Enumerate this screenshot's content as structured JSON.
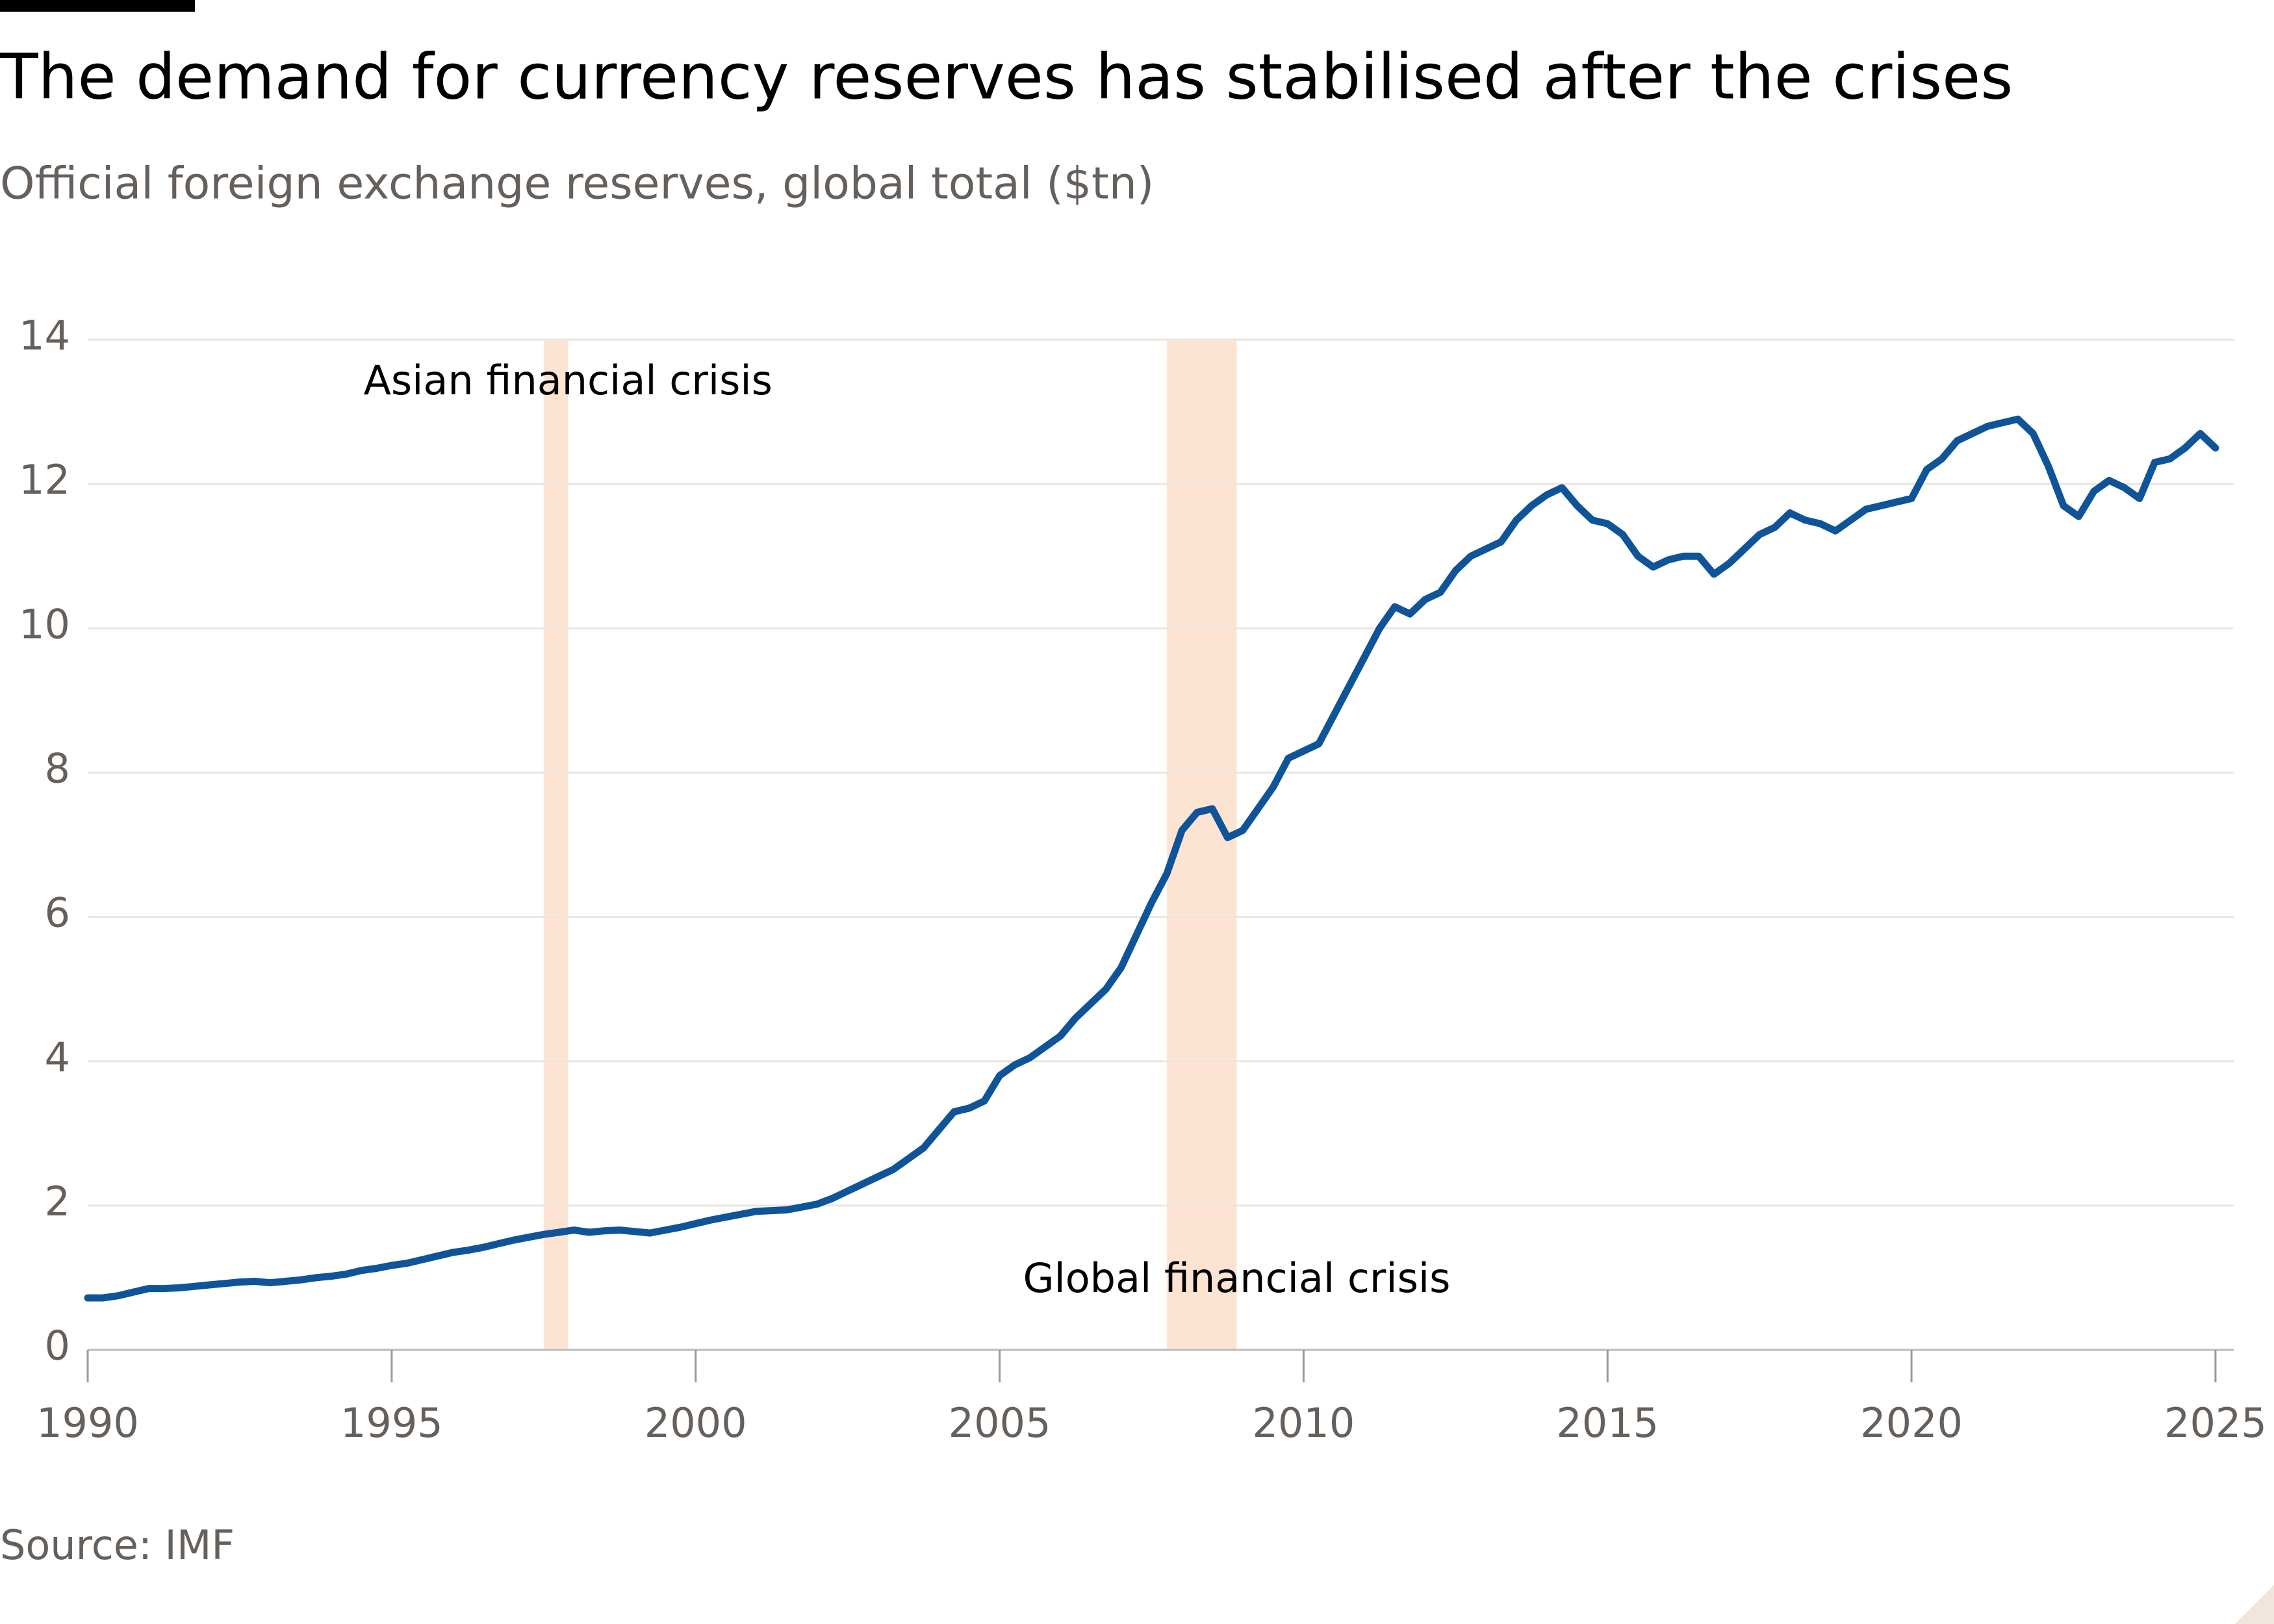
{
  "chart_data": {
    "type": "line",
    "title": "The demand for currency reserves has stabilised after the crises",
    "subtitle": "Official foreign exchange reserves, global total ($tn)",
    "source": "Source: IMF",
    "x": [
      1990,
      1990.25,
      1990.5,
      1990.75,
      1991,
      1991.25,
      1991.5,
      1991.75,
      1992,
      1992.25,
      1992.5,
      1992.75,
      1993,
      1993.25,
      1993.5,
      1993.75,
      1994,
      1994.25,
      1994.5,
      1994.75,
      1995,
      1995.25,
      1995.5,
      1995.75,
      1996,
      1996.25,
      1996.5,
      1996.75,
      1997,
      1997.25,
      1997.5,
      1997.75,
      1998,
      1998.25,
      1998.5,
      1998.75,
      1999,
      1999.25,
      1999.5,
      1999.75,
      2000,
      2000.25,
      2000.5,
      2000.75,
      2001,
      2001.25,
      2001.5,
      2001.75,
      2002,
      2002.25,
      2002.5,
      2002.75,
      2003,
      2003.25,
      2003.5,
      2003.75,
      2004,
      2004.25,
      2004.5,
      2004.75,
      2005,
      2005.25,
      2005.5,
      2005.75,
      2006,
      2006.25,
      2006.5,
      2006.75,
      2007,
      2007.25,
      2007.5,
      2007.75,
      2008,
      2008.25,
      2008.5,
      2008.75,
      2009,
      2009.25,
      2009.5,
      2009.75,
      2010,
      2010.25,
      2010.5,
      2010.75,
      2011,
      2011.25,
      2011.5,
      2011.75,
      2012,
      2012.25,
      2012.5,
      2012.75,
      2013,
      2013.25,
      2013.5,
      2013.75,
      2014,
      2014.25,
      2014.5,
      2014.75,
      2015,
      2015.25,
      2015.5,
      2015.75,
      2016,
      2016.25,
      2016.5,
      2016.75,
      2017,
      2017.25,
      2017.5,
      2017.75,
      2018,
      2018.25,
      2018.5,
      2018.75,
      2019,
      2019.25,
      2019.5,
      2019.75,
      2020,
      2020.25,
      2020.5,
      2020.75,
      2021,
      2021.25,
      2021.5,
      2021.75,
      2022,
      2022.25,
      2022.5,
      2022.75,
      2023,
      2023.25,
      2023.5,
      2023.75,
      2024,
      2024.25,
      2024.5,
      2024.75,
      2025
    ],
    "series": [
      {
        "color": "#0f5499",
        "values": [
          0.72,
          0.72,
          0.75,
          0.8,
          0.85,
          0.85,
          0.86,
          0.88,
          0.9,
          0.92,
          0.94,
          0.95,
          0.93,
          0.95,
          0.97,
          1.0,
          1.02,
          1.05,
          1.1,
          1.13,
          1.17,
          1.2,
          1.25,
          1.3,
          1.35,
          1.38,
          1.42,
          1.47,
          1.52,
          1.56,
          1.6,
          1.63,
          1.66,
          1.63,
          1.65,
          1.66,
          1.64,
          1.62,
          1.66,
          1.7,
          1.75,
          1.8,
          1.84,
          1.88,
          1.92,
          1.93,
          1.94,
          1.98,
          2.02,
          2.1,
          2.2,
          2.3,
          2.4,
          2.5,
          2.65,
          2.8,
          3.05,
          3.3,
          3.35,
          3.45,
          3.8,
          3.95,
          4.05,
          4.2,
          4.35,
          4.6,
          4.8,
          5.0,
          5.3,
          5.75,
          6.2,
          6.6,
          7.2,
          7.45,
          7.5,
          7.1,
          7.2,
          7.5,
          7.8,
          8.2,
          8.3,
          8.4,
          8.8,
          9.2,
          9.6,
          10.0,
          10.3,
          10.2,
          10.4,
          10.5,
          10.8,
          11.0,
          11.1,
          11.2,
          11.5,
          11.7,
          11.85,
          11.95,
          11.7,
          11.5,
          11.45,
          11.3,
          11.0,
          10.85,
          10.95,
          11.0,
          11.0,
          10.75,
          10.9,
          11.1,
          11.3,
          11.4,
          11.6,
          11.5,
          11.45,
          11.35,
          11.5,
          11.65,
          11.7,
          11.75,
          11.8,
          12.2,
          12.35,
          12.6,
          12.7,
          12.8,
          12.85,
          12.9,
          12.7,
          12.25,
          11.7,
          11.55,
          11.9,
          12.05,
          11.95,
          11.8,
          12.3,
          12.35,
          12.5,
          12.7,
          12.5
        ]
      }
    ],
    "bands": [
      {
        "label": "Asian financial crisis",
        "start": 1997.5,
        "end": 1997.9,
        "color": "#fde4d2"
      },
      {
        "label": "Global financial crisis",
        "start": 2007.75,
        "end": 2008.9,
        "color": "#fde4d2"
      }
    ],
    "xlim": [
      1990,
      2025.3
    ],
    "xticks": [
      1990,
      1995,
      2000,
      2005,
      2010,
      2015,
      2020,
      2025
    ],
    "ylim": [
      0,
      14
    ],
    "yticks": [
      0,
      2,
      4,
      6,
      8,
      10,
      12,
      14
    ],
    "grid": true
  }
}
